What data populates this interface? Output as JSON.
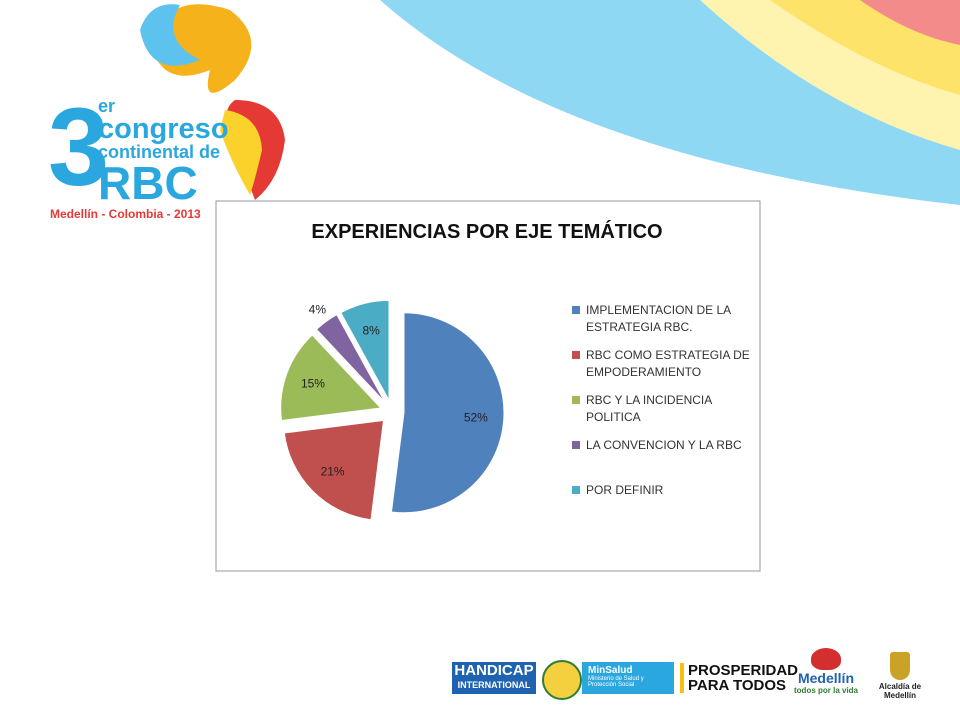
{
  "header": {
    "logo_number": "3",
    "logo_superscript": "er",
    "logo_line1": "congreso",
    "logo_line2": "continental de",
    "logo_line3": "RBC",
    "logo_caption": "Medellín - Colombia - 2013"
  },
  "chart_data": {
    "type": "pie",
    "title": "EXPERIENCIAS POR EJE TEMÁTICO",
    "categories": [
      "IMPLEMENTACION DE LA ESTRATEGIA RBC.",
      "RBC COMO ESTRATEGIA DE EMPODERAMIENTO",
      "RBC Y LA INCIDENCIA POLITICA",
      "LA CONVENCION Y LA RBC",
      "POR DEFINIR"
    ],
    "values": [
      52,
      21,
      15,
      4,
      8
    ],
    "value_labels": [
      "52%",
      "21%",
      "15%",
      "4%",
      "8%"
    ],
    "colors": [
      "#4f81bd",
      "#c0504d",
      "#9bbb59",
      "#8064a2",
      "#4bacc6"
    ],
    "legend": "right"
  },
  "footer": {
    "handicap_1": "HANDICAP",
    "handicap_2": "INTERNATIONAL",
    "minsalud": "MinSalud",
    "minsalud_sub": "Ministerio de Salud y Protección Social",
    "prosperidad_1": "PROSPERIDAD",
    "prosperidad_2": "PARA TODOS",
    "medellin": "Medellín",
    "medellin_sub": "todos por la vida",
    "alcaldia": "Alcaldía de Medellín"
  }
}
